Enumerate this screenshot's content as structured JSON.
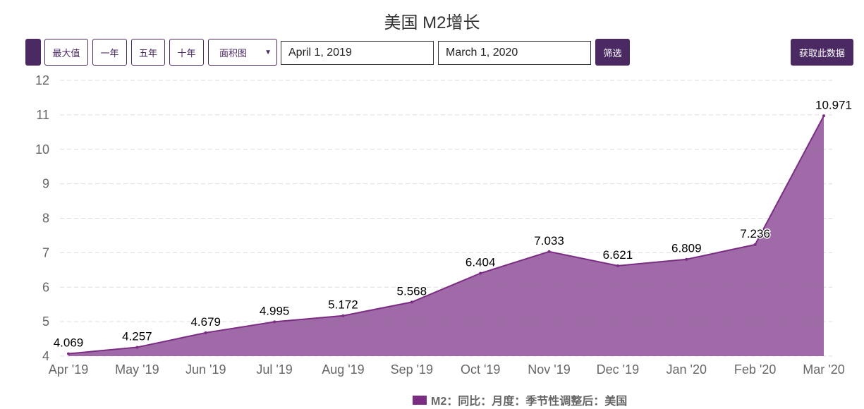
{
  "title": "美国 M2增长",
  "toolbar": {
    "max": "最大值",
    "one_year": "一年",
    "five_year": "五年",
    "ten_year": "十年",
    "chart_type": "面积图",
    "start_date": "April 1, 2019",
    "end_date": "March 1, 2020",
    "filter": "筛选",
    "get_data": "获取此数据"
  },
  "colors": {
    "accent": "#4b2a63",
    "series": "#7b2d83",
    "fill": "#9a62a2"
  },
  "chart_data": {
    "type": "area",
    "categories": [
      "Apr '19",
      "May '19",
      "Jun '19",
      "Jul '19",
      "Aug '19",
      "Sep '19",
      "Oct '19",
      "Nov '19",
      "Dec '19",
      "Jan '20",
      "Feb '20",
      "Mar '20"
    ],
    "series": [
      {
        "name": "M2：同比：月度：季节性调整后：美国",
        "values": [
          4.069,
          4.257,
          4.679,
          4.995,
          5.172,
          5.568,
          6.404,
          7.033,
          6.621,
          6.809,
          7.236,
          10.971
        ]
      }
    ],
    "labels": [
      "4.069",
      "4.257",
      "4.679",
      "4.995",
      "5.172",
      "5.568",
      "6.404",
      "7.033",
      "6.621",
      "6.809",
      "7.236",
      "10.971"
    ],
    "yticks": [
      "4",
      "5",
      "6",
      "7",
      "8",
      "9",
      "10",
      "11",
      "12"
    ],
    "ylim": [
      4,
      12
    ],
    "grid": true,
    "legend": "bottom"
  }
}
